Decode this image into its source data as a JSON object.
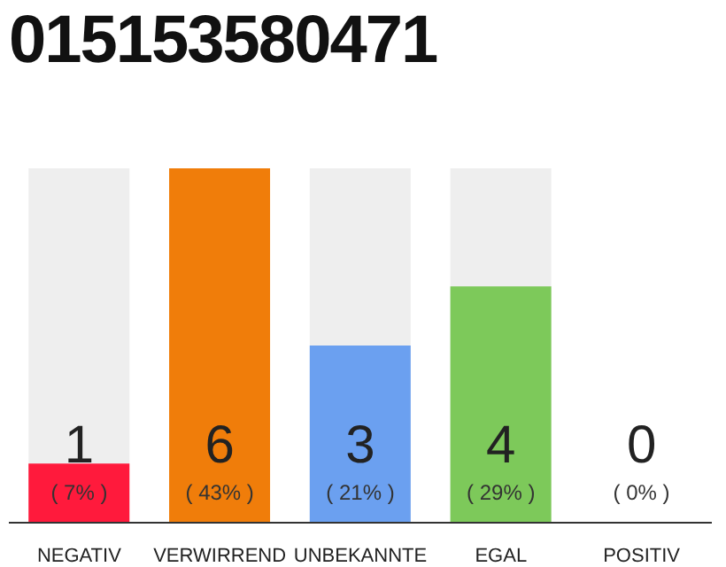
{
  "chart_data": {
    "type": "bar",
    "title": "015153580471",
    "categories": [
      "NEGATIV",
      "VERWIRREND",
      "UNBEKANNTE",
      "EGAL",
      "POSITIV"
    ],
    "values": [
      1,
      6,
      3,
      4,
      0
    ],
    "colors": [
      "#ff1a3c",
      "#f07d0a",
      "#6ba0f0",
      "#7dc95a",
      "#bbbbbb"
    ],
    "data_labels": true,
    "annotations": [
      "( 7% )",
      "( 43% )",
      "( 21% )",
      "( 29% )",
      "( 0% )"
    ]
  }
}
